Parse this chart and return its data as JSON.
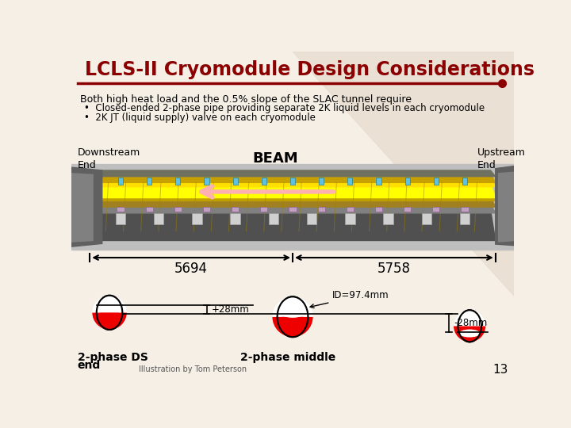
{
  "title": "LCLS-II Cryomodule Design Considerations",
  "title_color": "#8B0000",
  "bg_color": "#F5EFE6",
  "bg_triangle_color": "#E8DDD0",
  "separator_color": "#8B0000",
  "body_text": "Both high heat load and the 0.5% slope of the SLAC tunnel require",
  "bullet1": "Closed-ended 2-phase pipe providing separate 2K liquid levels in each cryomodule",
  "bullet2": "2K JT (liquid supply) valve on each cryomodule",
  "label_downstream": "Downstream\nEnd",
  "label_upstream": "Upstream\nEnd",
  "label_beam": "BEAM",
  "label_5694": "5694",
  "label_5758": "5758",
  "label_plus28": "+28mm",
  "label_id": "ID=97.4mm",
  "label_minus28": "-28mm",
  "label_2phase_ds": "2-phase DS",
  "label_2phase_ds2": "end",
  "label_2phase_mid": "2-phase middle",
  "label_illustration": "Illustration by Tom Peterson",
  "label_page": "13",
  "text_color": "#000000",
  "dim_line_color": "#000000",
  "cryomod_bg": "#C8C8C8",
  "cryomod_yellow": "#FFFF00",
  "cryomod_outer": "#8B7300",
  "arrow_pink": "#FFB0B0"
}
